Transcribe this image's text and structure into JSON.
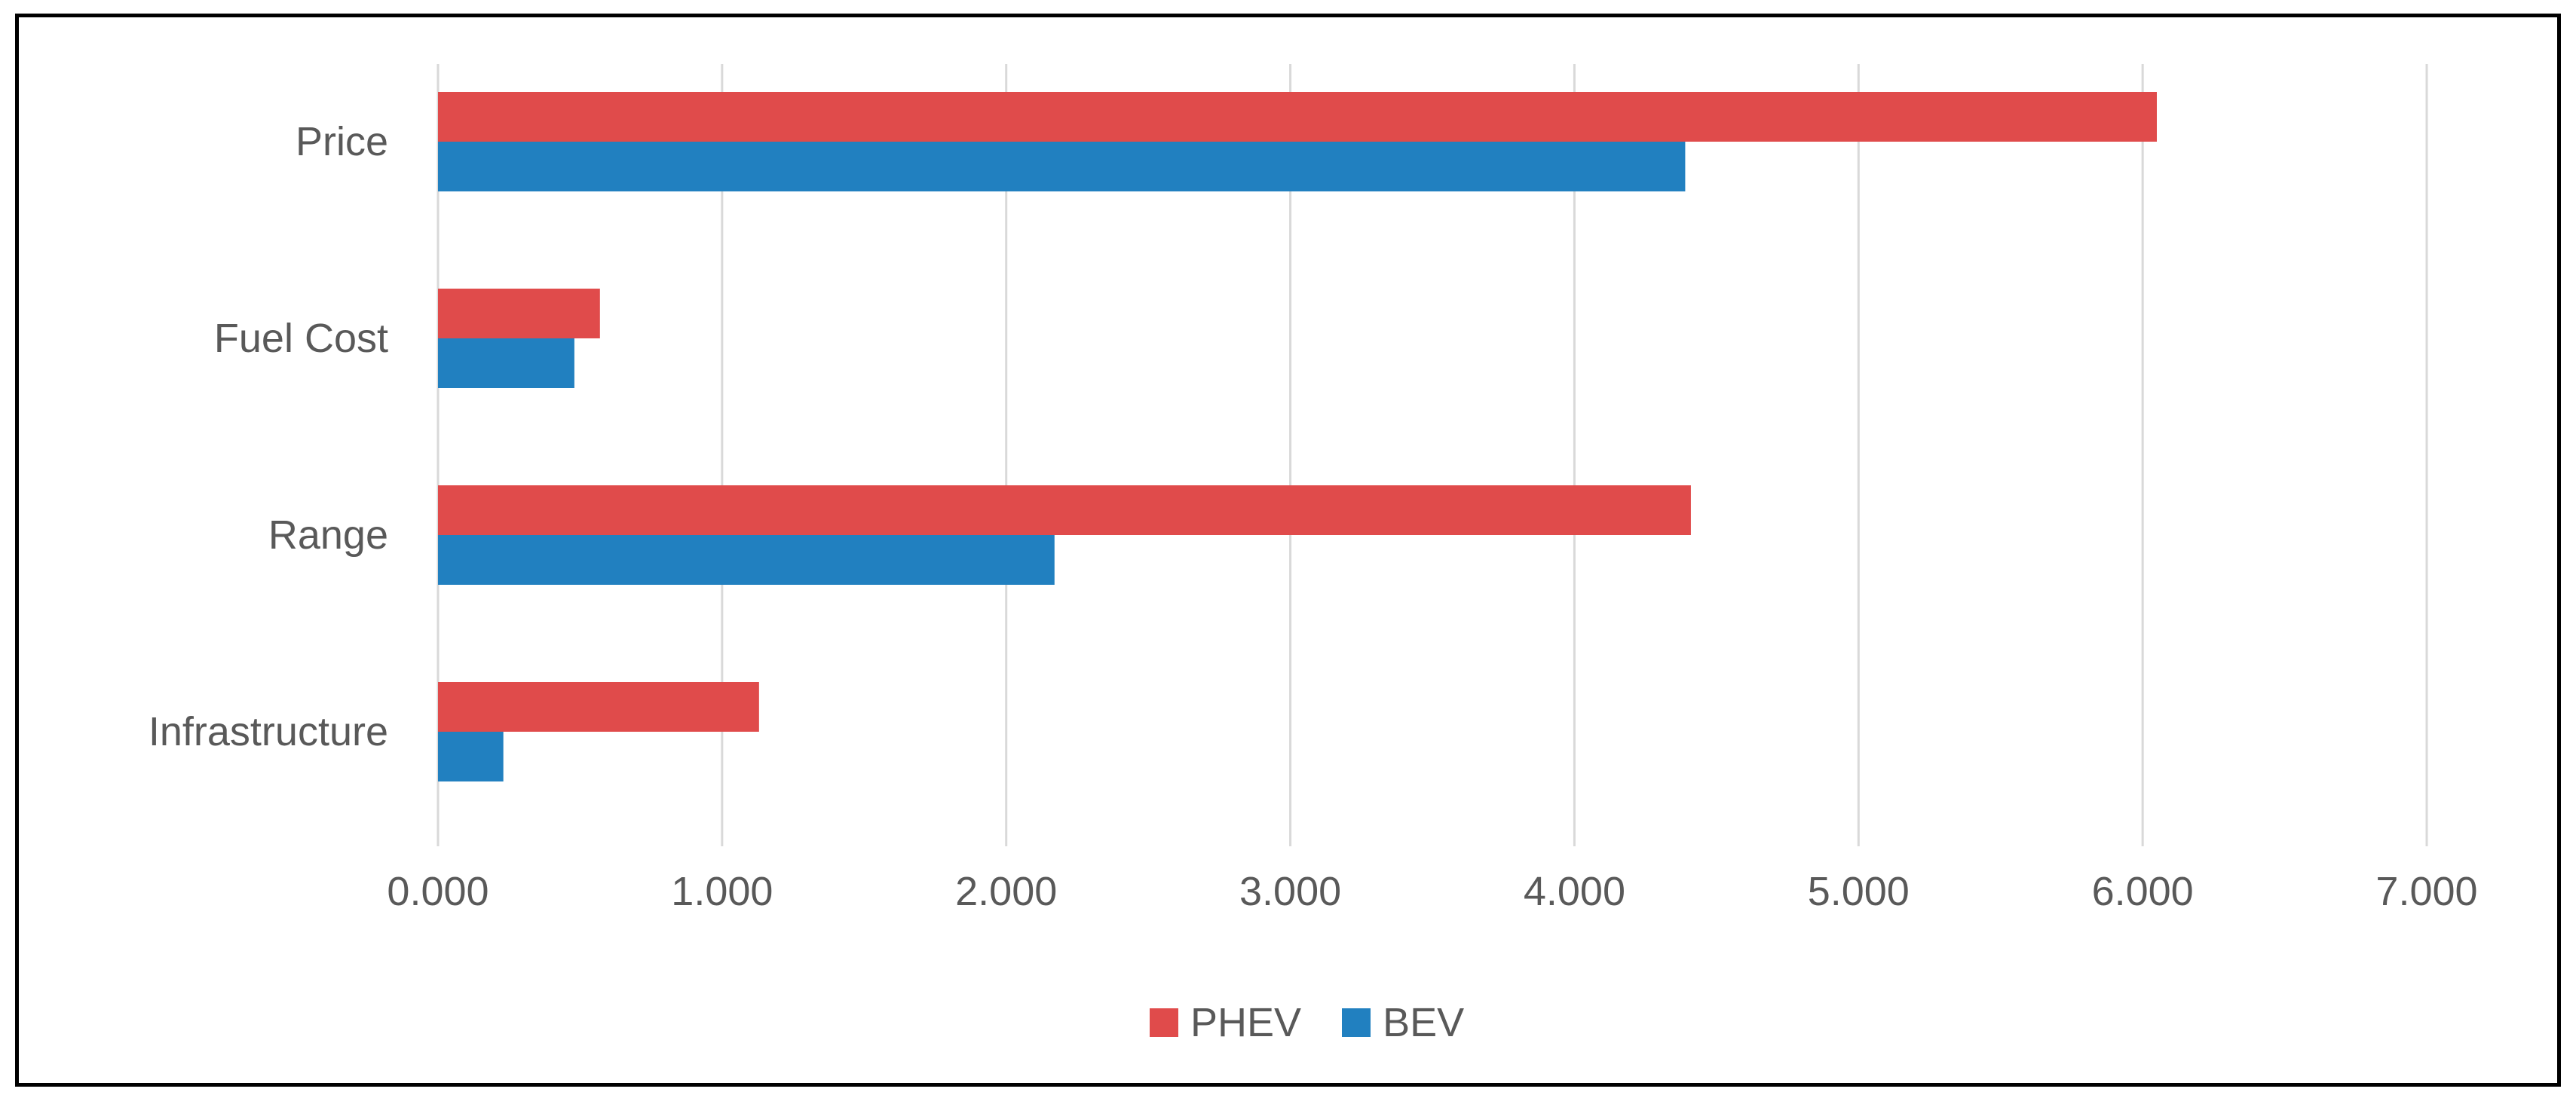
{
  "chart_data": {
    "type": "bar",
    "orientation": "horizontal",
    "title": "",
    "xlabel": "",
    "ylabel": "",
    "categories": [
      "Price",
      "Fuel Cost",
      "Range",
      "Infrastructure"
    ],
    "series": [
      {
        "name": "PHEV",
        "color": "#E04B4B",
        "values": [
          6.05,
          0.57,
          4.41,
          1.13
        ]
      },
      {
        "name": "BEV",
        "color": "#2180C0",
        "values": [
          4.39,
          0.48,
          2.17,
          0.23
        ]
      }
    ],
    "xlim": [
      0,
      7
    ],
    "xticks": [
      0,
      1,
      2,
      3,
      4,
      5,
      6,
      7
    ],
    "xtick_labels": [
      "0.000",
      "1.000",
      "2.000",
      "3.000",
      "4.000",
      "5.000",
      "6.000",
      "7.000"
    ],
    "grid": "vertical",
    "legend_position": "bottom"
  }
}
